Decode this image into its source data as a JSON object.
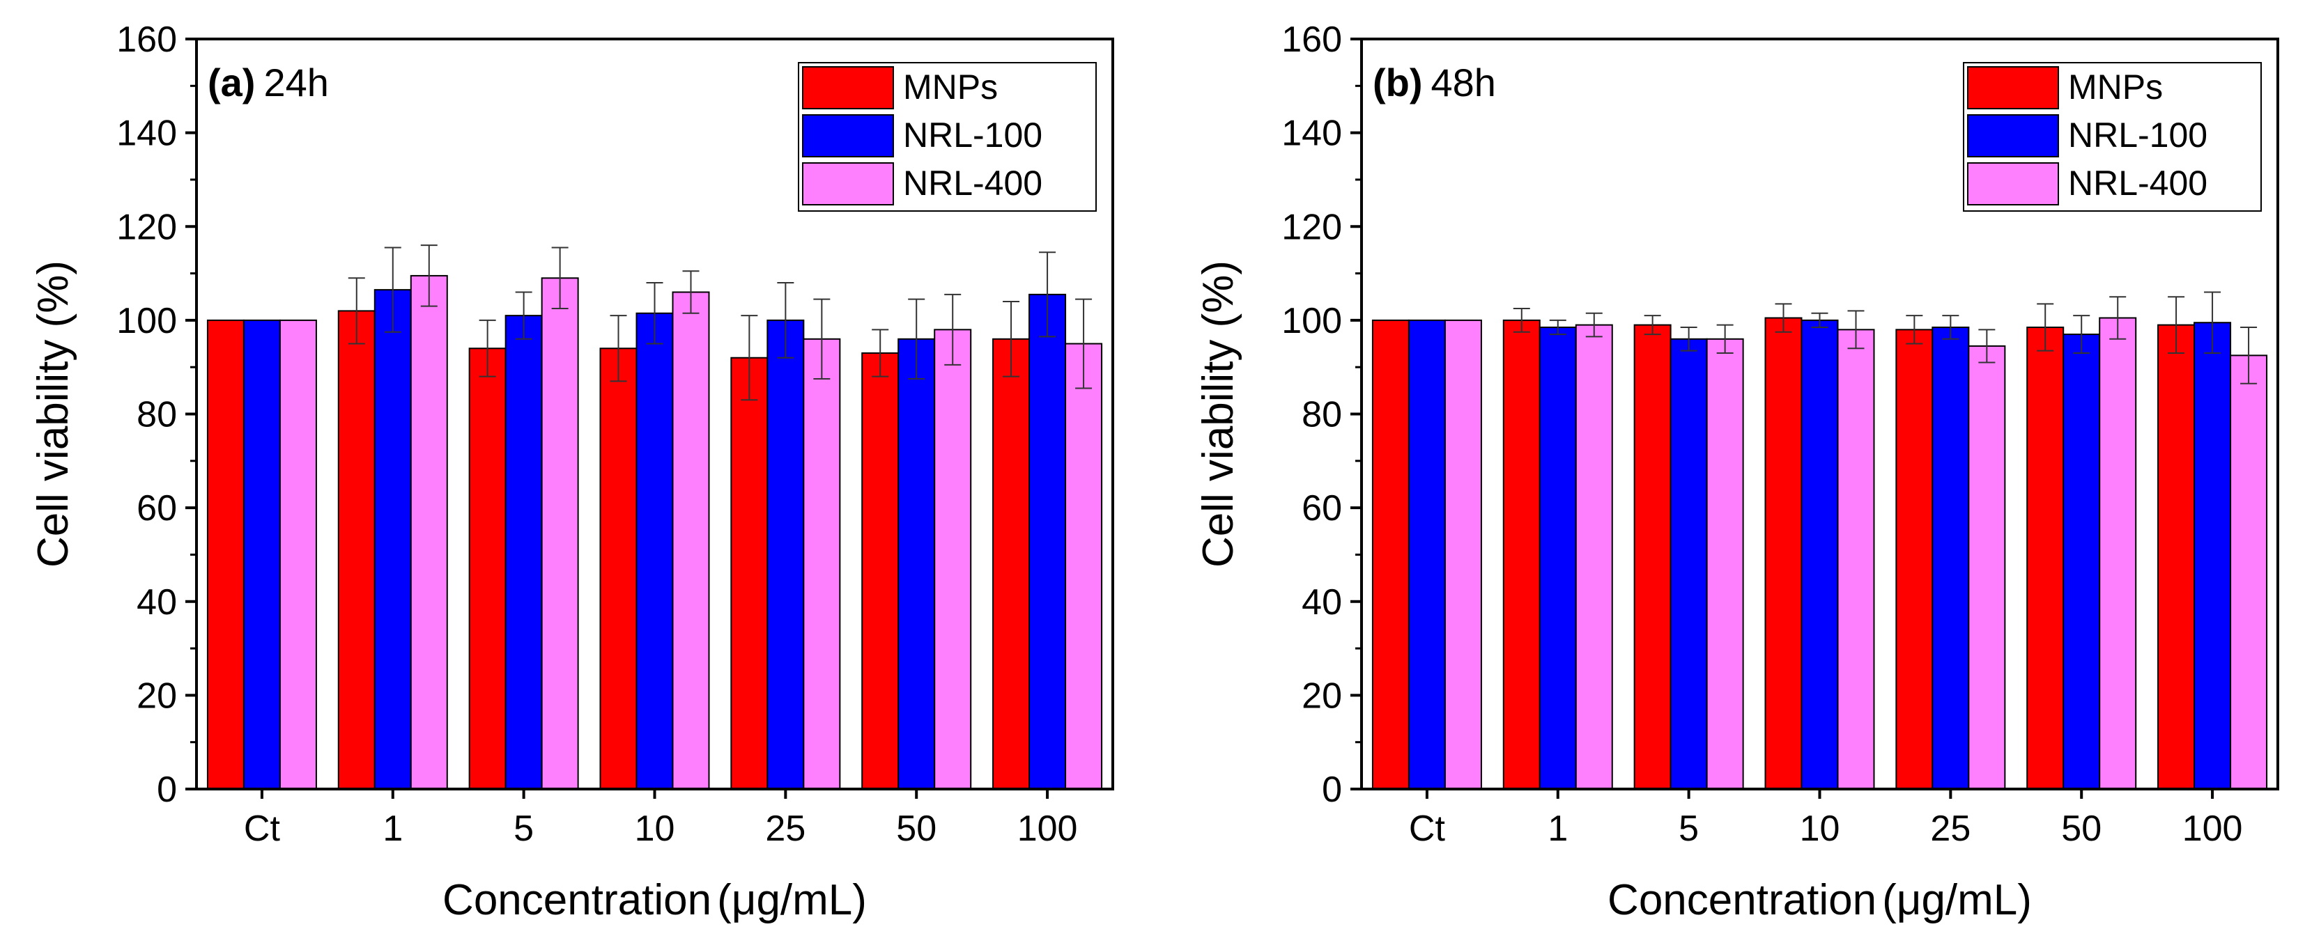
{
  "chart_data": [
    {
      "type": "bar",
      "panel_label": "(a)",
      "title": "24h",
      "xlabel": "Concentration",
      "xlabel_unit": "(μg/mL)",
      "ylabel": "Cell viability (%)",
      "ylim": [
        0,
        160
      ],
      "yticks": [
        "0",
        "20",
        "40",
        "60",
        "80",
        "100",
        "120",
        "140",
        "160"
      ],
      "categories": [
        "Ct",
        "1",
        "5",
        "10",
        "25",
        "50",
        "100"
      ],
      "legend_position": "top-right",
      "series": [
        {
          "name": "MNPs",
          "color": "#ff0000",
          "values": [
            100,
            102,
            94,
            94,
            92,
            93,
            96
          ],
          "errors": [
            0,
            7,
            6,
            7,
            9,
            5,
            8
          ]
        },
        {
          "name": "NRL-100",
          "color": "#0000ff",
          "values": [
            100,
            106.5,
            101,
            101.5,
            100,
            96,
            105.5
          ],
          "errors": [
            0,
            9,
            5,
            6.5,
            8,
            8.5,
            9
          ]
        },
        {
          "name": "NRL-400",
          "color": "#ff80ff",
          "values": [
            100,
            109.5,
            109,
            106,
            96,
            98,
            95
          ],
          "errors": [
            0,
            6.5,
            6.5,
            4.5,
            8.5,
            7.5,
            9.5
          ]
        }
      ]
    },
    {
      "type": "bar",
      "panel_label": "(b)",
      "title": "48h",
      "xlabel": "Concentration",
      "xlabel_unit": "(μg/mL)",
      "ylabel": "Cell viability (%)",
      "ylim": [
        0,
        160
      ],
      "yticks": [
        "0",
        "20",
        "40",
        "60",
        "80",
        "100",
        "120",
        "140",
        "160"
      ],
      "categories": [
        "Ct",
        "1",
        "5",
        "10",
        "25",
        "50",
        "100"
      ],
      "legend_position": "top-right",
      "series": [
        {
          "name": "MNPs",
          "color": "#ff0000",
          "values": [
            100,
            100,
            99,
            100.5,
            98,
            98.5,
            99
          ],
          "errors": [
            0,
            2.5,
            2,
            3,
            3,
            5,
            6
          ]
        },
        {
          "name": "NRL-100",
          "color": "#0000ff",
          "values": [
            100,
            98.5,
            96,
            100,
            98.5,
            97,
            99.5
          ],
          "errors": [
            0,
            1.5,
            2.5,
            1.5,
            2.5,
            4,
            6.5
          ]
        },
        {
          "name": "NRL-400",
          "color": "#ff80ff",
          "values": [
            100,
            99,
            96,
            98,
            94.5,
            100.5,
            92.5
          ],
          "errors": [
            0,
            2.5,
            3,
            4,
            3.5,
            4.5,
            6
          ]
        }
      ]
    }
  ]
}
